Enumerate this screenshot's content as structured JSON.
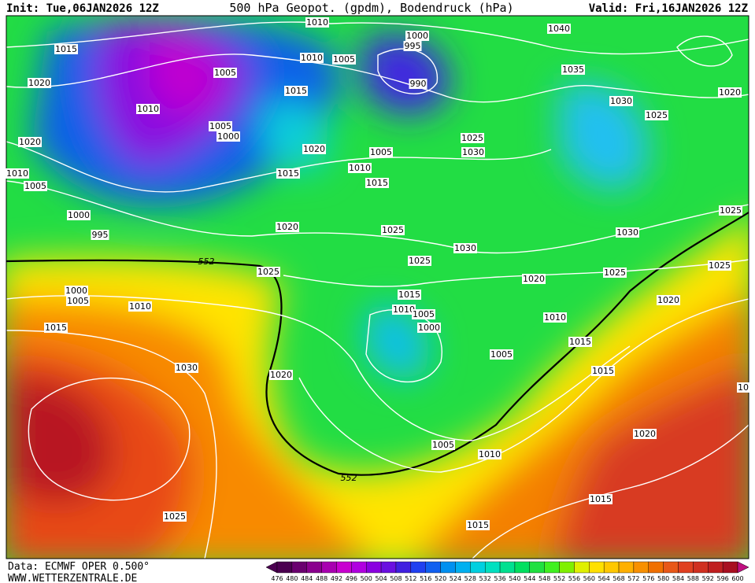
{
  "header": {
    "init": "Init: Tue,06JAN2026 12Z",
    "title": "500 hPa Geopot. (gpdm), Bodendruck (hPa)",
    "valid": "Valid: Fri,16JAN2026 12Z"
  },
  "map": {
    "isobar_labels": [
      1010,
      1000,
      995,
      1015,
      1010,
      1005,
      1005,
      1040,
      1035,
      1020,
      1015,
      990,
      1020,
      1010,
      1030,
      1025,
      1005,
      1000,
      1020,
      1025,
      1020,
      1005,
      1030,
      1010,
      1010,
      1015,
      1005,
      1015,
      1000,
      1025,
      995,
      1020,
      1025,
      1030,
      1030,
      552,
      1025,
      1025,
      1025,
      1025,
      1020,
      1000,
      1005,
      1015,
      1020,
      1010,
      1010,
      1005,
      1000,
      1010,
      1015,
      1015,
      1005,
      1030,
      1015,
      1020,
      10,
      1020,
      1005,
      1010,
      552,
      1015,
      1025,
      1015
    ]
  },
  "colorbar": {
    "levels": [
      476,
      480,
      484,
      488,
      492,
      496,
      500,
      504,
      508,
      512,
      516,
      520,
      524,
      528,
      532,
      536,
      540,
      544,
      548,
      552,
      556,
      560,
      564,
      568,
      572,
      576,
      580,
      584,
      588,
      592,
      596,
      600
    ],
    "colors": [
      "#4b0050",
      "#6a006f",
      "#8a008e",
      "#a800b0",
      "#c800d0",
      "#b000e0",
      "#8a00e0",
      "#6a10e0",
      "#4020e0",
      "#2040f0",
      "#1060f0",
      "#0090f0",
      "#00b0f0",
      "#00d0e0",
      "#00e0c0",
      "#00e090",
      "#00e060",
      "#20e040",
      "#40f020",
      "#80f000",
      "#e0f000",
      "#ffe000",
      "#ffc800",
      "#ffb000",
      "#f89000",
      "#f07000",
      "#e85818",
      "#e04020",
      "#d03020",
      "#c02020",
      "#a81020",
      "#c01080"
    ]
  },
  "footer": {
    "source": "Data: ECMWF OPER 0.500°",
    "site": "WWW.WETTERZENTRALE.DE"
  }
}
